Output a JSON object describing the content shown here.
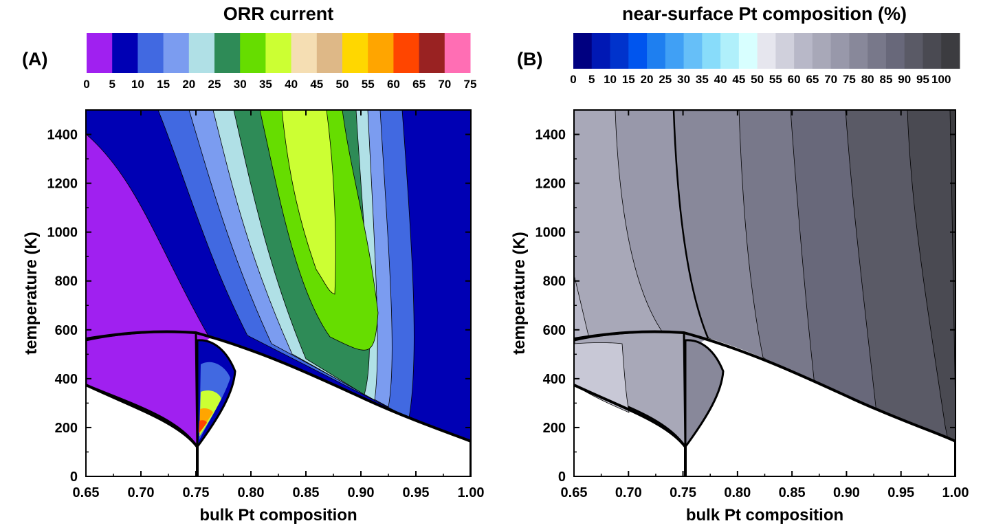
{
  "figure": {
    "panels": [
      {
        "id": "A",
        "letter": "(A)",
        "title": "ORR current",
        "colorbar": {
          "colors": [
            "#a020f0",
            "#0000b4",
            "#4169e1",
            "#7b9cf0",
            "#b0e0e6",
            "#2e8b57",
            "#66dd00",
            "#ccff33",
            "#f5deb3",
            "#deb887",
            "#ffd700",
            "#ffa500",
            "#ff4500",
            "#992222",
            "#ff6eb4"
          ],
          "labels": [
            "0",
            "5",
            "10",
            "15",
            "20",
            "25",
            "30",
            "35",
            "40",
            "45",
            "50",
            "55",
            "60",
            "65",
            "70",
            "75"
          ]
        },
        "contour_bands": [
          {
            "range": "0-5",
            "color": "#a020f0"
          },
          {
            "range": "5-10",
            "color": "#0000b4"
          },
          {
            "range": "10-15",
            "color": "#4169e1"
          },
          {
            "range": "15-20",
            "color": "#7b9cf0"
          },
          {
            "range": "20-25",
            "color": "#b0e0e6"
          },
          {
            "range": "25-30",
            "color": "#2e8b57"
          },
          {
            "range": "30-35",
            "color": "#66dd00"
          },
          {
            "range": "35-40",
            "color": "#ccff33"
          }
        ]
      },
      {
        "id": "B",
        "letter": "(B)",
        "title": "near-surface Pt composition (%)",
        "colorbar": {
          "colors": [
            "#000080",
            "#0018b4",
            "#0033cc",
            "#0055ee",
            "#1e7ff0",
            "#40a0f5",
            "#66bff8",
            "#88dcfa",
            "#b0f0fb",
            "#d8ffff",
            "#e6e6ee",
            "#d0d0dc",
            "#b8b8c8",
            "#a8a8b8",
            "#9898aa",
            "#88889a",
            "#78788a",
            "#68687a",
            "#5a5a66",
            "#4a4a52",
            "#3c3c40"
          ],
          "labels": [
            "0",
            "5",
            "10",
            "15",
            "20",
            "25",
            "30",
            "35",
            "40",
            "45",
            "50",
            "55",
            "60",
            "65",
            "70",
            "75",
            "80",
            "85",
            "90",
            "95",
            "100"
          ]
        }
      }
    ],
    "axes": {
      "x_label": "bulk Pt composition",
      "y_label": "temperature (K)",
      "x_ticks": [
        "0.65",
        "0.70",
        "0.75",
        "0.80",
        "0.85",
        "0.90",
        "0.95",
        "1.00"
      ],
      "y_ticks": [
        "0",
        "200",
        "400",
        "600",
        "800",
        "1000",
        "1200",
        "1400"
      ]
    }
  },
  "chart_data": [
    {
      "type": "heatmap",
      "title": "ORR current",
      "xlabel": "bulk Pt composition",
      "ylabel": "temperature (K)",
      "xlim": [
        0.65,
        1.0
      ],
      "ylim": [
        0,
        1500
      ],
      "colorbar_levels": [
        0,
        5,
        10,
        15,
        20,
        25,
        30,
        35,
        40,
        45,
        50,
        55,
        60,
        65,
        70,
        75
      ],
      "max_region": {
        "x": [
          0.83,
          0.88
        ],
        "y": [
          750,
          1500
        ],
        "level_range": [
          35,
          40
        ]
      },
      "phase_boundaries": {
        "upper_dome_peak": {
          "x": 0.725,
          "y": 600
        },
        "lower_boundary_minimum": {
          "x": 0.75,
          "y": 0
        },
        "right_edge_minimum": {
          "x": 1.0,
          "y": 120
        }
      }
    },
    {
      "type": "heatmap",
      "title": "near-surface Pt composition (%)",
      "xlabel": "bulk Pt composition",
      "ylabel": "temperature (K)",
      "xlim": [
        0.65,
        1.0
      ],
      "ylim": [
        0,
        1500
      ],
      "colorbar_levels": [
        0,
        5,
        10,
        15,
        20,
        25,
        30,
        35,
        40,
        45,
        50,
        55,
        60,
        65,
        70,
        75,
        80,
        85,
        90,
        95,
        100
      ],
      "trend": "near-surface Pt increases with bulk Pt composition (≈60% at 0.65 to ≈100% at 1.00)"
    }
  ]
}
